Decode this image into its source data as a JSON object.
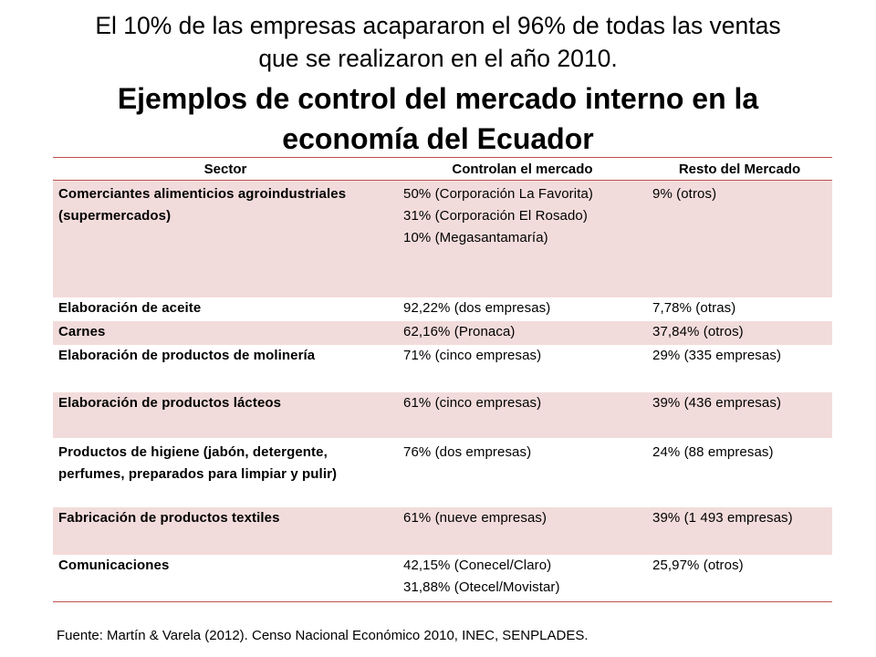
{
  "title_line_1": "El 10% de las  empresas acapararon el 96% de todas las ventas",
  "title_line_2": "que se realizaron en el año 2010.",
  "subtitle_line_1": "Ejemplos de control del mercado interno en la",
  "subtitle_line_2": "economía del Ecuador",
  "table": {
    "headers": [
      "Sector",
      "Controlan el mercado",
      "Resto del Mercado"
    ],
    "rows": [
      {
        "sector": "Comerciantes alimenticios agroindustriales (supermercados)",
        "control": [
          "50% (Corporación La Favorita)",
          "31% (Corporación El Rosado)",
          "10% (Megasantamaría)"
        ],
        "rest": "9% (otros)"
      },
      {
        "sector": "Elaboración de aceite",
        "control": [
          "92,22% (dos empresas)"
        ],
        "rest": "7,78% (otras)"
      },
      {
        "sector": "Carnes",
        "control": [
          "62,16% (Pronaca)"
        ],
        "rest": "37,84% (otros)"
      },
      {
        "sector": "Elaboración de productos de molinería",
        "control": [
          "71% (cinco empresas)"
        ],
        "rest": "29% (335 empresas)"
      },
      {
        "sector": "Elaboración de productos lácteos",
        "control": [
          "61% (cinco empresas)"
        ],
        "rest": "39% (436 empresas)"
      },
      {
        "sector": "Productos de higiene (jabón, detergente, perfumes, preparados para limpiar y pulir)",
        "control": [
          "76% (dos empresas)"
        ],
        "rest": "24% (88 empresas)"
      },
      {
        "sector": "Fabricación de productos textiles",
        "control": [
          "61% (nueve empresas)"
        ],
        "rest": "39% (1 493 empresas)"
      },
      {
        "sector": "Comunicaciones",
        "control": [
          "42,15% (Conecel/Claro)",
          "31,88% (Otecel/Movistar)"
        ],
        "rest": "25,97% (otros)"
      }
    ]
  },
  "source": "Fuente: Martín & Varela (2012). Censo Nacional Económico 2010, INEC, SENPLADES.",
  "colors": {
    "row_shade": "#f2dcdb",
    "rule": "#c0504d"
  }
}
